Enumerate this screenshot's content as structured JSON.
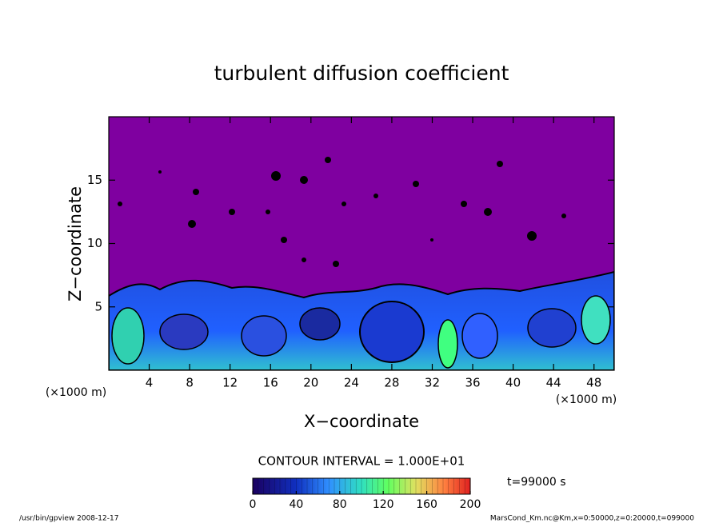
{
  "chart_data": {
    "type": "contour",
    "title": "turbulent diffusion coefficient",
    "xlabel": "X−coordinate",
    "ylabel": "Z−coordinate",
    "x_unit": "(×1000 m)",
    "y_unit": "(×1000 m)",
    "xlim": [
      0,
      50
    ],
    "xticks": [
      4,
      8,
      12,
      16,
      20,
      24,
      28,
      32,
      36,
      40,
      44,
      48
    ],
    "ylim": [
      0,
      20
    ],
    "yticks": [
      5,
      10,
      15
    ],
    "background_color": "#7f00a0",
    "contour_interval": "CONTOUR INTERVAL = 1.000E+01",
    "colorbar": {
      "lim": [
        0,
        200
      ],
      "ticks": [
        0,
        40,
        80,
        120,
        160,
        200
      ]
    },
    "time_label": "t=99000 s",
    "footer_left": "/usr/bin/gpview  2008-12-17",
    "footer_right": "MarsCond_Km.nc@Km,x=0:50000,z=0:20000,t=099000"
  }
}
